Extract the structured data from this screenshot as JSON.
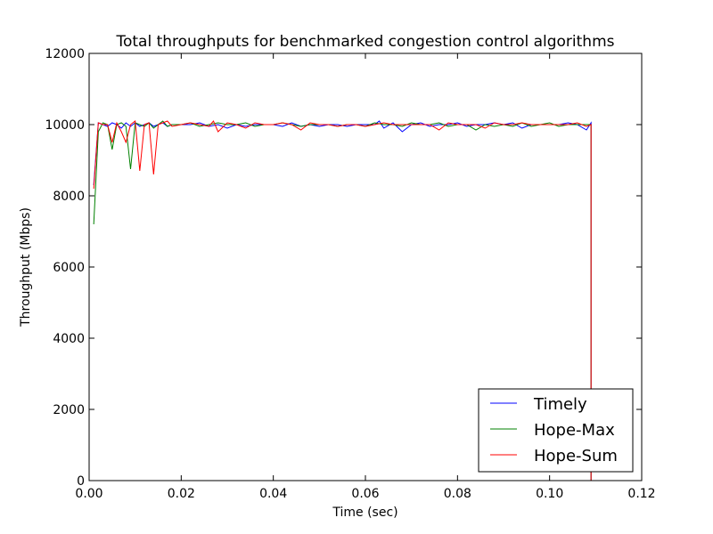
{
  "chart_data": {
    "type": "line",
    "title": "Total throughputs for benchmarked congestion control algorithms",
    "xlabel": "Time (sec)",
    "ylabel": "Throughput (Mbps)",
    "xlim": [
      0,
      0.12
    ],
    "ylim": [
      0,
      12000
    ],
    "xticks": [
      0,
      0.02,
      0.04,
      0.06,
      0.08,
      0.1,
      0.12
    ],
    "xtick_labels": [
      "0.00",
      "0.02",
      "0.04",
      "0.06",
      "0.08",
      "0.10",
      "0.12"
    ],
    "yticks": [
      0,
      2000,
      4000,
      6000,
      8000,
      10000,
      12000
    ],
    "ytick_labels": [
      "0",
      "2000",
      "4000",
      "6000",
      "8000",
      "10000",
      "12000"
    ],
    "grid": false,
    "legend_position": "bottom-right",
    "series": [
      {
        "name": "Timely",
        "color": "#0000ff",
        "x": [
          0.001,
          0.002,
          0.003,
          0.004,
          0.005,
          0.006,
          0.007,
          0.008,
          0.009,
          0.01,
          0.011,
          0.012,
          0.013,
          0.014,
          0.015,
          0.016,
          0.017,
          0.018,
          0.02,
          0.022,
          0.024,
          0.026,
          0.028,
          0.03,
          0.032,
          0.034,
          0.036,
          0.038,
          0.04,
          0.042,
          0.044,
          0.046,
          0.048,
          0.05,
          0.052,
          0.054,
          0.056,
          0.058,
          0.06,
          0.062,
          0.063,
          0.064,
          0.066,
          0.068,
          0.07,
          0.072,
          0.074,
          0.076,
          0.078,
          0.08,
          0.082,
          0.084,
          0.086,
          0.088,
          0.09,
          0.092,
          0.094,
          0.096,
          0.098,
          0.1,
          0.102,
          0.104,
          0.106,
          0.108,
          0.109,
          0.109
        ],
        "y": [
          8300,
          10050,
          10000,
          9950,
          10050,
          10000,
          9900,
          10050,
          9950,
          10050,
          9950,
          10000,
          10050,
          9950,
          10000,
          10050,
          9950,
          10000,
          10000,
          10000,
          10050,
          9950,
          10000,
          9900,
          10000,
          9950,
          10000,
          10000,
          10000,
          9950,
          10050,
          9950,
          10000,
          9950,
          10000,
          10000,
          9950,
          10000,
          10000,
          10000,
          10100,
          9900,
          10050,
          9800,
          10000,
          10050,
          9950,
          10000,
          10000,
          10050,
          9950,
          10000,
          10000,
          10050,
          10000,
          10050,
          9900,
          10000,
          10000,
          10000,
          10000,
          10050,
          10000,
          9850,
          10050,
          0
        ]
      },
      {
        "name": "Hope-Max",
        "color": "#008000",
        "x": [
          0.001,
          0.002,
          0.003,
          0.004,
          0.005,
          0.006,
          0.007,
          0.008,
          0.009,
          0.01,
          0.011,
          0.012,
          0.013,
          0.014,
          0.015,
          0.016,
          0.017,
          0.018,
          0.02,
          0.022,
          0.024,
          0.026,
          0.028,
          0.03,
          0.032,
          0.034,
          0.036,
          0.038,
          0.04,
          0.042,
          0.044,
          0.046,
          0.048,
          0.05,
          0.052,
          0.054,
          0.056,
          0.058,
          0.06,
          0.062,
          0.064,
          0.066,
          0.068,
          0.07,
          0.072,
          0.074,
          0.076,
          0.078,
          0.08,
          0.082,
          0.084,
          0.086,
          0.088,
          0.09,
          0.092,
          0.094,
          0.096,
          0.098,
          0.1,
          0.102,
          0.104,
          0.106,
          0.108,
          0.109,
          0.109
        ],
        "y": [
          7200,
          9800,
          10050,
          10000,
          9300,
          10000,
          10050,
          9950,
          8750,
          10050,
          10000,
          9950,
          10050,
          9900,
          10000,
          10100,
          9950,
          10000,
          10000,
          10050,
          9950,
          10000,
          10050,
          10000,
          10000,
          10050,
          9950,
          10000,
          10000,
          10050,
          10000,
          9950,
          10000,
          10000,
          10000,
          9950,
          10000,
          10000,
          9950,
          10050,
          10000,
          10000,
          9950,
          10050,
          10000,
          10000,
          10050,
          9950,
          10000,
          10000,
          9850,
          10000,
          9950,
          10000,
          9950,
          10050,
          9950,
          10000,
          10050,
          9950,
          10000,
          10000,
          10000,
          10000,
          0
        ]
      },
      {
        "name": "Hope-Sum",
        "color": "#ff0000",
        "x": [
          0.001,
          0.002,
          0.003,
          0.004,
          0.005,
          0.006,
          0.007,
          0.008,
          0.009,
          0.01,
          0.011,
          0.012,
          0.013,
          0.014,
          0.015,
          0.016,
          0.017,
          0.018,
          0.02,
          0.022,
          0.024,
          0.026,
          0.027,
          0.028,
          0.03,
          0.032,
          0.034,
          0.036,
          0.038,
          0.04,
          0.042,
          0.044,
          0.046,
          0.048,
          0.05,
          0.052,
          0.054,
          0.056,
          0.058,
          0.06,
          0.062,
          0.064,
          0.066,
          0.068,
          0.07,
          0.072,
          0.074,
          0.076,
          0.078,
          0.08,
          0.082,
          0.084,
          0.086,
          0.088,
          0.09,
          0.092,
          0.094,
          0.096,
          0.098,
          0.1,
          0.102,
          0.104,
          0.106,
          0.108,
          0.109,
          0.109
        ],
        "y": [
          8200,
          10050,
          10000,
          10000,
          9500,
          10050,
          9800,
          9500,
          10000,
          10100,
          8700,
          10000,
          10050,
          8600,
          10000,
          10050,
          10100,
          9950,
          10000,
          10050,
          10000,
          9950,
          10100,
          9800,
          10050,
          10000,
          9900,
          10050,
          10000,
          10000,
          10050,
          10000,
          9850,
          10050,
          10000,
          10000,
          9950,
          10000,
          10000,
          9950,
          10000,
          10050,
          10000,
          10000,
          10000,
          10000,
          10000,
          9850,
          10050,
          10000,
          10000,
          10000,
          9900,
          10050,
          10000,
          10000,
          10050,
          10000,
          10000,
          10000,
          10000,
          10000,
          10050,
          9950,
          10000,
          0
        ]
      }
    ]
  }
}
